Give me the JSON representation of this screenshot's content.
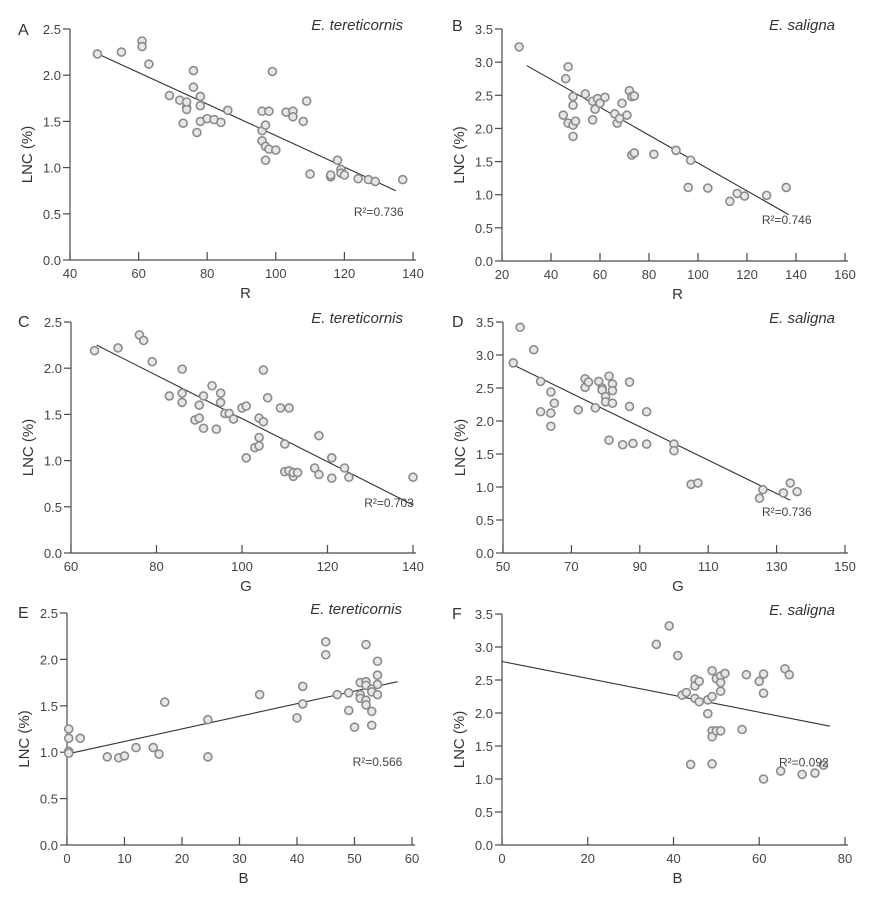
{
  "chart_data": [
    {
      "id": "A",
      "type": "scatter",
      "panel_label": "A",
      "title": "E. tereticornis",
      "xlabel": "R",
      "ylabel": "LNC (%)",
      "xlim": [
        40,
        140
      ],
      "ylim": [
        0,
        2.5
      ],
      "xticks": [
        40,
        60,
        80,
        100,
        120,
        140
      ],
      "yticks": [
        0.0,
        0.5,
        1.0,
        1.5,
        2.0,
        2.5
      ],
      "ytick_labels": [
        "0.0",
        "0.5",
        "1.0",
        "1.5",
        "2.0",
        "2.5"
      ],
      "r2_label": "R²=0.736",
      "fit_line": {
        "x": [
          47,
          135
        ],
        "y": [
          2.25,
          0.75
        ]
      },
      "points": [
        [
          48,
          2.23
        ],
        [
          55,
          2.25
        ],
        [
          61,
          2.37
        ],
        [
          61,
          2.31
        ],
        [
          63,
          2.12
        ],
        [
          69,
          1.78
        ],
        [
          72,
          1.73
        ],
        [
          73,
          1.48
        ],
        [
          74,
          1.65
        ],
        [
          74,
          1.63
        ],
        [
          74,
          1.71
        ],
        [
          76,
          2.05
        ],
        [
          76,
          1.87
        ],
        [
          77,
          1.38
        ],
        [
          78,
          1.77
        ],
        [
          78,
          1.67
        ],
        [
          78,
          1.5
        ],
        [
          80,
          1.53
        ],
        [
          82,
          1.52
        ],
        [
          84,
          1.49
        ],
        [
          86,
          1.62
        ],
        [
          96,
          1.61
        ],
        [
          96,
          1.4
        ],
        [
          96,
          1.29
        ],
        [
          97,
          1.46
        ],
        [
          97,
          1.23
        ],
        [
          97,
          1.08
        ],
        [
          98,
          1.61
        ],
        [
          98,
          1.2
        ],
        [
          99,
          2.04
        ],
        [
          100,
          1.19
        ],
        [
          103,
          1.6
        ],
        [
          105,
          1.61
        ],
        [
          105,
          1.55
        ],
        [
          108,
          1.5
        ],
        [
          109,
          1.72
        ],
        [
          110,
          0.93
        ],
        [
          116,
          0.9
        ],
        [
          116,
          0.92
        ],
        [
          118,
          1.08
        ],
        [
          119,
          0.98
        ],
        [
          119,
          0.94
        ],
        [
          120,
          0.92
        ],
        [
          124,
          0.88
        ],
        [
          127,
          0.87
        ],
        [
          129,
          0.85
        ],
        [
          137,
          0.87
        ]
      ]
    },
    {
      "id": "B",
      "type": "scatter",
      "panel_label": "B",
      "title": "E. saligna",
      "xlabel": "R",
      "ylabel": "LNC (%)",
      "xlim": [
        20,
        160
      ],
      "ylim": [
        0,
        3.5
      ],
      "xticks": [
        20,
        40,
        60,
        80,
        100,
        120,
        140,
        160
      ],
      "yticks": [
        0.0,
        0.5,
        1.0,
        1.5,
        2.0,
        2.5,
        3.0,
        3.5
      ],
      "ytick_labels": [
        "0.0",
        "0.5",
        "1.0",
        "1.5",
        "2.0",
        "2.5",
        "3.0",
        "3.5"
      ],
      "r2_label": "R²=0.746",
      "fit_line": {
        "x": [
          30,
          137
        ],
        "y": [
          2.95,
          0.7
        ]
      },
      "points": [
        [
          27,
          3.23
        ],
        [
          45,
          2.2
        ],
        [
          46,
          2.75
        ],
        [
          47,
          2.93
        ],
        [
          47,
          2.08
        ],
        [
          49,
          2.48
        ],
        [
          49,
          2.35
        ],
        [
          49,
          2.05
        ],
        [
          49,
          1.88
        ],
        [
          50,
          2.11
        ],
        [
          54,
          2.52
        ],
        [
          57,
          2.41
        ],
        [
          57,
          2.13
        ],
        [
          58,
          2.29
        ],
        [
          59,
          2.45
        ],
        [
          60,
          2.38
        ],
        [
          62,
          2.47
        ],
        [
          66,
          2.22
        ],
        [
          67,
          2.08
        ],
        [
          68,
          2.15
        ],
        [
          69,
          2.38
        ],
        [
          71,
          2.2
        ],
        [
          72,
          2.57
        ],
        [
          73,
          2.48
        ],
        [
          73,
          1.6
        ],
        [
          74,
          2.49
        ],
        [
          74,
          1.63
        ],
        [
          82,
          1.61
        ],
        [
          91,
          1.67
        ],
        [
          96,
          1.11
        ],
        [
          97,
          1.52
        ],
        [
          104,
          1.1
        ],
        [
          113,
          0.9
        ],
        [
          116,
          1.02
        ],
        [
          119,
          0.98
        ],
        [
          128,
          0.99
        ],
        [
          136,
          1.11
        ]
      ]
    },
    {
      "id": "C",
      "type": "scatter",
      "panel_label": "C",
      "title": "E. tereticornis",
      "xlabel": "G",
      "ylabel": "LNC (%)",
      "xlim": [
        60,
        140
      ],
      "ylim": [
        0,
        2.5
      ],
      "xticks": [
        60,
        80,
        100,
        120,
        140
      ],
      "yticks": [
        0.0,
        0.5,
        1.0,
        1.5,
        2.0,
        2.5
      ],
      "ytick_labels": [
        "0.0",
        "0.5",
        "1.0",
        "1.5",
        "2.0",
        "2.5"
      ],
      "r2_label": "R²=0.703",
      "fit_line": {
        "x": [
          66,
          140
        ],
        "y": [
          2.25,
          0.52
        ]
      },
      "points": [
        [
          65.5,
          2.19
        ],
        [
          71,
          2.22
        ],
        [
          76,
          2.36
        ],
        [
          77,
          2.3
        ],
        [
          79,
          2.07
        ],
        [
          83,
          1.7
        ],
        [
          86,
          1.99
        ],
        [
          86,
          1.73
        ],
        [
          86,
          1.63
        ],
        [
          89,
          1.44
        ],
        [
          90,
          1.6
        ],
        [
          90,
          1.46
        ],
        [
          91,
          1.7
        ],
        [
          91,
          1.35
        ],
        [
          93,
          1.81
        ],
        [
          94,
          1.34
        ],
        [
          95,
          1.73
        ],
        [
          95,
          1.63
        ],
        [
          96,
          1.51
        ],
        [
          97,
          1.51
        ],
        [
          98,
          1.45
        ],
        [
          100,
          1.57
        ],
        [
          101,
          1.59
        ],
        [
          101,
          1.03
        ],
        [
          103,
          1.14
        ],
        [
          104,
          1.46
        ],
        [
          104,
          1.25
        ],
        [
          104,
          1.16
        ],
        [
          105,
          1.98
        ],
        [
          105,
          1.42
        ],
        [
          106,
          1.68
        ],
        [
          109,
          1.57
        ],
        [
          110,
          1.18
        ],
        [
          110,
          0.88
        ],
        [
          111,
          1.57
        ],
        [
          111,
          0.89
        ],
        [
          112,
          0.83
        ],
        [
          112,
          0.87
        ],
        [
          113,
          0.87
        ],
        [
          117,
          0.92
        ],
        [
          118,
          1.27
        ],
        [
          118,
          0.85
        ],
        [
          121,
          1.03
        ],
        [
          121,
          0.81
        ],
        [
          124,
          0.92
        ],
        [
          125,
          0.82
        ],
        [
          140,
          0.82
        ]
      ]
    },
    {
      "id": "D",
      "type": "scatter",
      "panel_label": "D",
      "title": "E. saligna",
      "xlabel": "G",
      "ylabel": "LNC (%)",
      "xlim": [
        50,
        150
      ],
      "ylim": [
        0,
        3.5
      ],
      "xticks": [
        50,
        70,
        90,
        110,
        130,
        150
      ],
      "yticks": [
        0.0,
        0.5,
        1.0,
        1.5,
        2.0,
        2.5,
        3.0,
        3.5
      ],
      "ytick_labels": [
        "0.0",
        "0.5",
        "1.0",
        "1.5",
        "2.0",
        "2.5",
        "3.0",
        "3.5"
      ],
      "r2_label": "R²=0.736",
      "fit_line": {
        "x": [
          53,
          134
        ],
        "y": [
          2.85,
          0.8
        ]
      },
      "points": [
        [
          53,
          2.88
        ],
        [
          55,
          3.42
        ],
        [
          59,
          3.08
        ],
        [
          61,
          2.6
        ],
        [
          61,
          2.14
        ],
        [
          64,
          2.44
        ],
        [
          64,
          2.12
        ],
        [
          64,
          1.92
        ],
        [
          65,
          2.27
        ],
        [
          72,
          2.17
        ],
        [
          74,
          2.64
        ],
        [
          74,
          2.51
        ],
        [
          75,
          2.59
        ],
        [
          77,
          2.2
        ],
        [
          78,
          2.6
        ],
        [
          79,
          2.5
        ],
        [
          79,
          2.47
        ],
        [
          80,
          2.37
        ],
        [
          80,
          2.29
        ],
        [
          81,
          2.68
        ],
        [
          81,
          1.71
        ],
        [
          82,
          2.56
        ],
        [
          82,
          2.46
        ],
        [
          82,
          2.27
        ],
        [
          85,
          1.64
        ],
        [
          87,
          2.59
        ],
        [
          87,
          2.22
        ],
        [
          88,
          1.66
        ],
        [
          92,
          1.65
        ],
        [
          92,
          2.14
        ],
        [
          100,
          1.65
        ],
        [
          100,
          1.55
        ],
        [
          105,
          1.04
        ],
        [
          107,
          1.06
        ],
        [
          125,
          0.83
        ],
        [
          126,
          0.96
        ],
        [
          132,
          0.91
        ],
        [
          134,
          1.06
        ],
        [
          136,
          0.93
        ]
      ]
    },
    {
      "id": "E",
      "type": "scatter",
      "panel_label": "E",
      "title": "E. tereticornis",
      "xlabel": "B",
      "ylabel": "LNC (%)",
      "xlim": [
        0,
        60
      ],
      "ylim": [
        0,
        2.5
      ],
      "xticks": [
        0,
        10,
        20,
        30,
        40,
        50,
        60
      ],
      "yticks": [
        0.0,
        0.5,
        1.0,
        1.5,
        2.0,
        2.5
      ],
      "ytick_labels": [
        "0.0",
        "0.5",
        "1.0",
        "1.5",
        "2.0",
        "2.5"
      ],
      "r2_label": "R²=0.566",
      "fit_line": {
        "x": [
          0,
          57.5
        ],
        "y": [
          0.98,
          1.76
        ]
      },
      "points": [
        [
          0.3,
          1.25
        ],
        [
          0.3,
          1.15
        ],
        [
          0.3,
          1.01
        ],
        [
          0.3,
          0.99
        ],
        [
          2.3,
          1.15
        ],
        [
          7,
          0.95
        ],
        [
          9,
          0.94
        ],
        [
          10,
          0.96
        ],
        [
          12,
          1.05
        ],
        [
          15,
          1.05
        ],
        [
          16,
          0.98
        ],
        [
          17,
          1.54
        ],
        [
          24.5,
          1.35
        ],
        [
          24.5,
          0.95
        ],
        [
          33.5,
          1.62
        ],
        [
          40,
          1.37
        ],
        [
          41,
          1.71
        ],
        [
          41,
          1.52
        ],
        [
          45,
          2.19
        ],
        [
          45,
          2.05
        ],
        [
          47,
          1.62
        ],
        [
          49,
          1.64
        ],
        [
          49,
          1.45
        ],
        [
          50,
          1.27
        ],
        [
          51,
          1.75
        ],
        [
          51,
          1.62
        ],
        [
          51,
          1.58
        ],
        [
          52,
          2.16
        ],
        [
          52,
          1.76
        ],
        [
          52,
          1.72
        ],
        [
          52,
          1.56
        ],
        [
          52,
          1.51
        ],
        [
          53,
          1.68
        ],
        [
          53,
          1.65
        ],
        [
          53,
          1.44
        ],
        [
          53,
          1.29
        ],
        [
          54,
          1.98
        ],
        [
          54,
          1.83
        ],
        [
          54,
          1.73
        ],
        [
          54,
          1.62
        ]
      ]
    },
    {
      "id": "F",
      "type": "scatter",
      "panel_label": "F",
      "title": "E. saligna",
      "xlabel": "B",
      "ylabel": "LNC (%)",
      "xlim": [
        0,
        80
      ],
      "ylim": [
        0,
        3.5
      ],
      "xticks": [
        0,
        20,
        40,
        60,
        80
      ],
      "yticks": [
        0.0,
        0.5,
        1.0,
        1.5,
        2.0,
        2.5,
        3.0,
        3.5
      ],
      "ytick_labels": [
        "0.0",
        "0.5",
        "1.0",
        "1.5",
        "2.0",
        "2.5",
        "3.0",
        "3.5"
      ],
      "r2_label": "R²=0.092",
      "fit_line": {
        "x": [
          0,
          76.5
        ],
        "y": [
          2.78,
          1.8
        ]
      },
      "points": [
        [
          36,
          3.04
        ],
        [
          39,
          3.32
        ],
        [
          41,
          2.87
        ],
        [
          42,
          2.27
        ],
        [
          43,
          2.31
        ],
        [
          44,
          1.22
        ],
        [
          45,
          2.51
        ],
        [
          45,
          2.41
        ],
        [
          45,
          2.22
        ],
        [
          46,
          2.48
        ],
        [
          46,
          2.17
        ],
        [
          48,
          2.2
        ],
        [
          48,
          1.99
        ],
        [
          49,
          2.64
        ],
        [
          49,
          2.25
        ],
        [
          49,
          1.73
        ],
        [
          49,
          1.64
        ],
        [
          49,
          1.23
        ],
        [
          50,
          2.52
        ],
        [
          50,
          1.73
        ],
        [
          51,
          2.56
        ],
        [
          51,
          2.46
        ],
        [
          51,
          2.33
        ],
        [
          51,
          1.73
        ],
        [
          52,
          2.6
        ],
        [
          56,
          1.75
        ],
        [
          57,
          2.58
        ],
        [
          60,
          2.48
        ],
        [
          61,
          2.59
        ],
        [
          61,
          2.3
        ],
        [
          61,
          1.0
        ],
        [
          65,
          1.12
        ],
        [
          66,
          2.67
        ],
        [
          67,
          2.58
        ],
        [
          70,
          1.07
        ],
        [
          73,
          1.09
        ],
        [
          75,
          1.21
        ]
      ]
    }
  ]
}
